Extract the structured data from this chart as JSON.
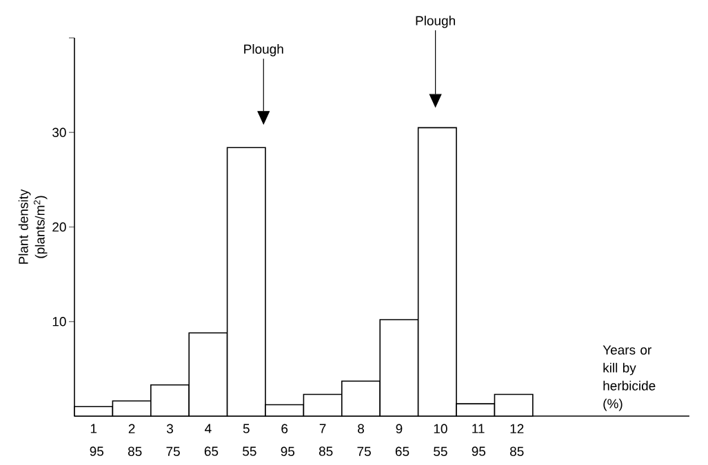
{
  "chart_data": {
    "type": "bar",
    "categories": [
      "1 95",
      "2 85",
      "3 75",
      "4 65",
      "5 55",
      "6 95",
      "7 85",
      "8 75",
      "9 65",
      "10 55",
      "11 95",
      "12 85"
    ],
    "values": [
      1.0,
      1.6,
      3.3,
      8.8,
      28.4,
      1.2,
      2.3,
      3.7,
      10.2,
      30.5,
      1.3,
      2.3
    ],
    "color": "#ffffff",
    "ylabel": "Plant density (plants/m$^{2}$)",
    "ylim": [
      0,
      40
    ],
    "yticks": [
      10,
      20,
      30,
      {
        "value": 40,
        "label": null
      }
    ],
    "annotations": [
      "Plough",
      "Plough",
      "Years or kill by herbicide (%)"
    ]
  }
}
